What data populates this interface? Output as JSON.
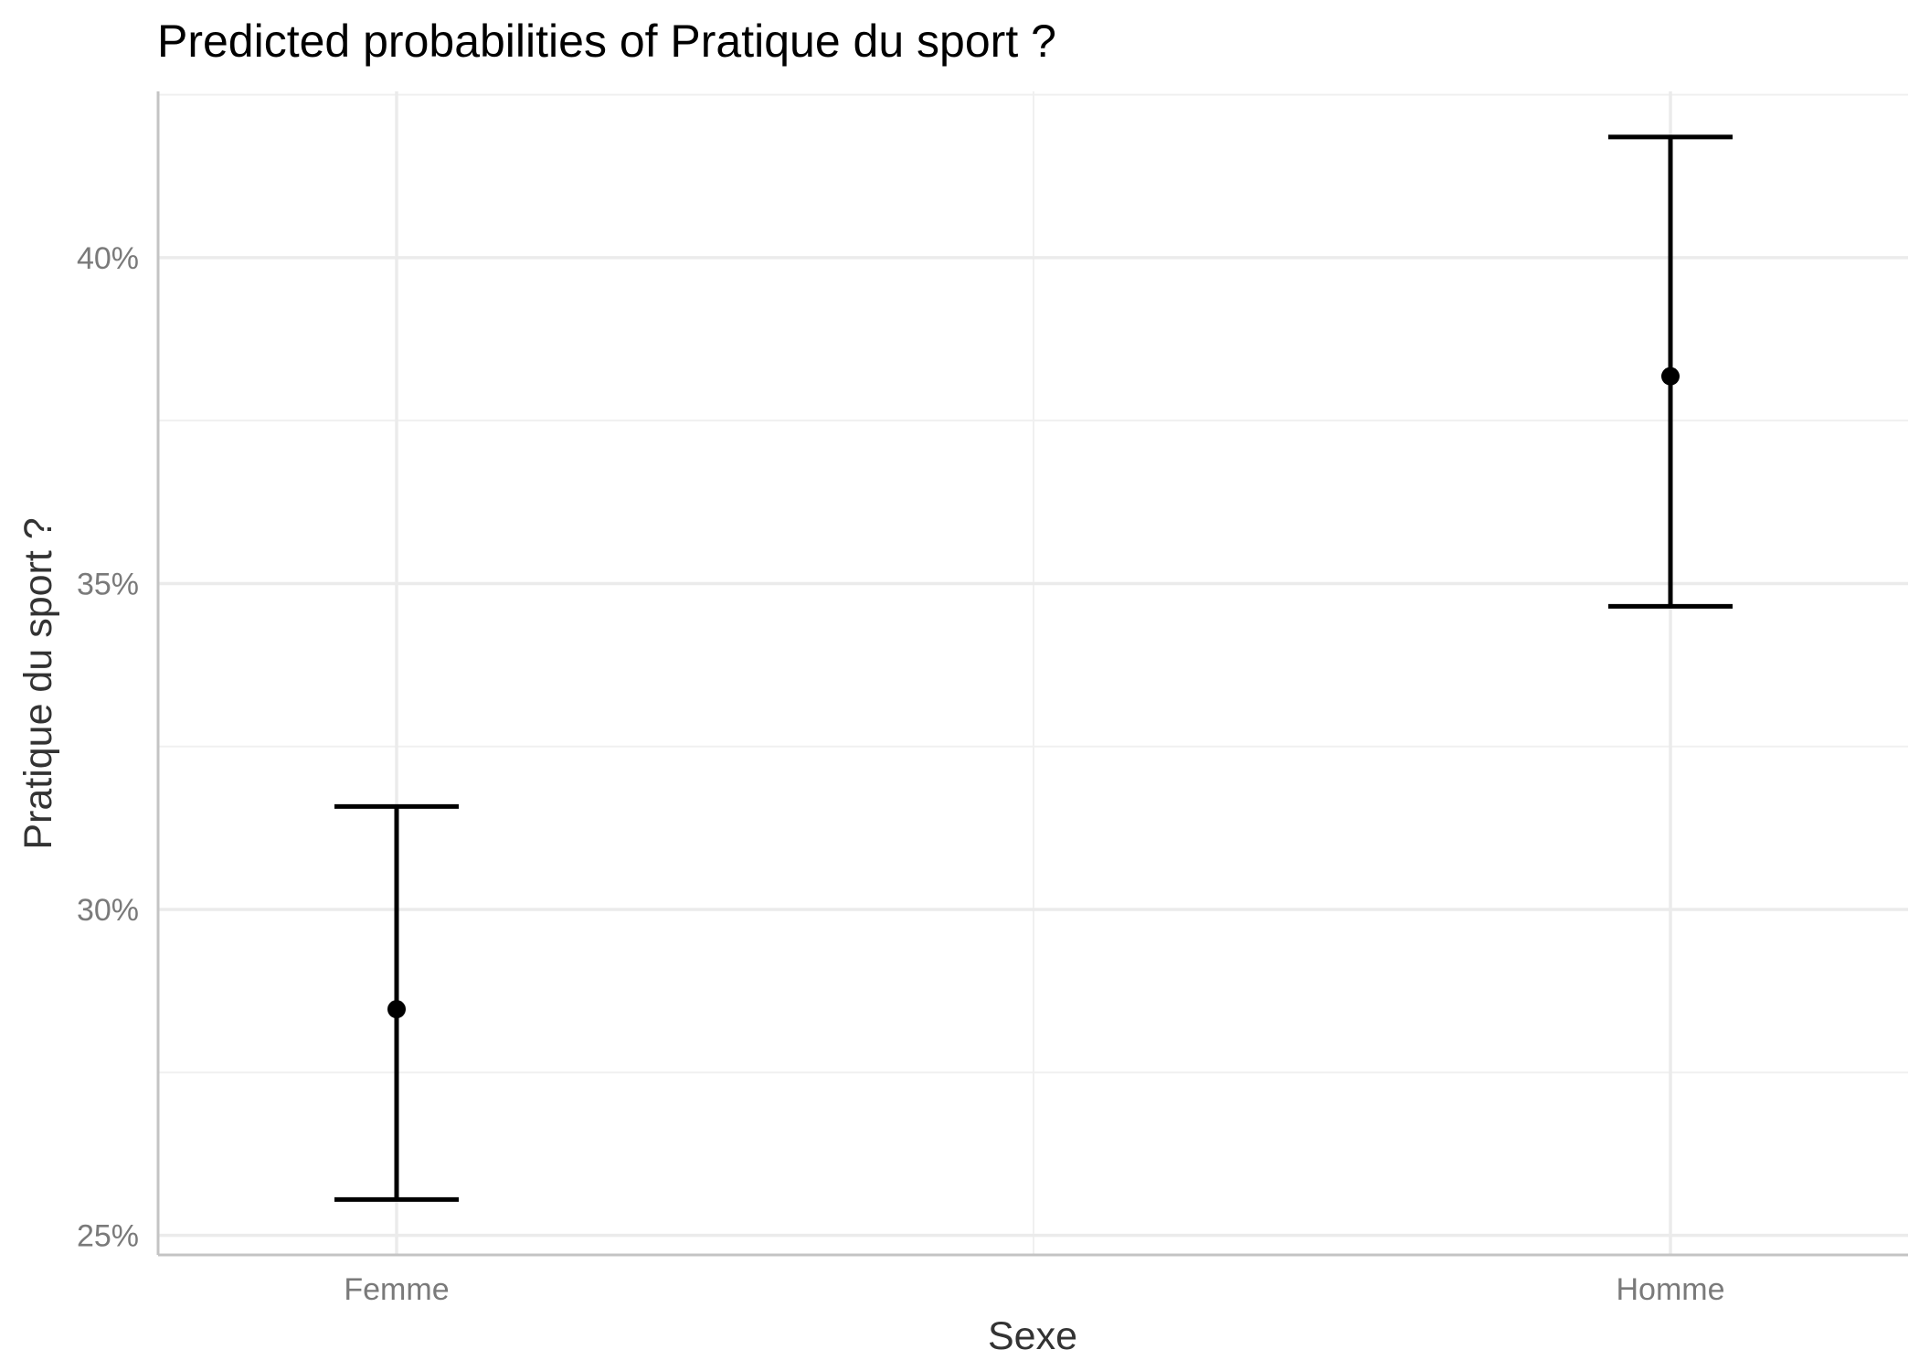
{
  "chart_data": {
    "type": "scatter",
    "title": "Predicted probabilities of Pratique du sport ?",
    "xlabel": "Sexe",
    "ylabel": "Pratique du sport ?",
    "categories": [
      "Femme",
      "Homme"
    ],
    "points": [
      {
        "category": "Femme",
        "estimate": 0.2847,
        "ci_low": 0.2555,
        "ci_high": 0.3158
      },
      {
        "category": "Homme",
        "estimate": 0.3818,
        "ci_low": 0.3465,
        "ci_high": 0.4185
      }
    ],
    "y_ticks": [
      {
        "value": 0.25,
        "label": "25%"
      },
      {
        "value": 0.3,
        "label": "30%"
      },
      {
        "value": 0.35,
        "label": "35%"
      },
      {
        "value": 0.4,
        "label": "40%"
      }
    ],
    "y_minor_ticks": [
      0.275,
      0.325,
      0.375,
      0.425
    ],
    "ylim": [
      0.247,
      0.4255
    ],
    "grid": true,
    "legend": "none",
    "colors": {
      "marks": "#000000",
      "grid": "#ebebeb",
      "tick_text": "#7a7a7a"
    }
  }
}
